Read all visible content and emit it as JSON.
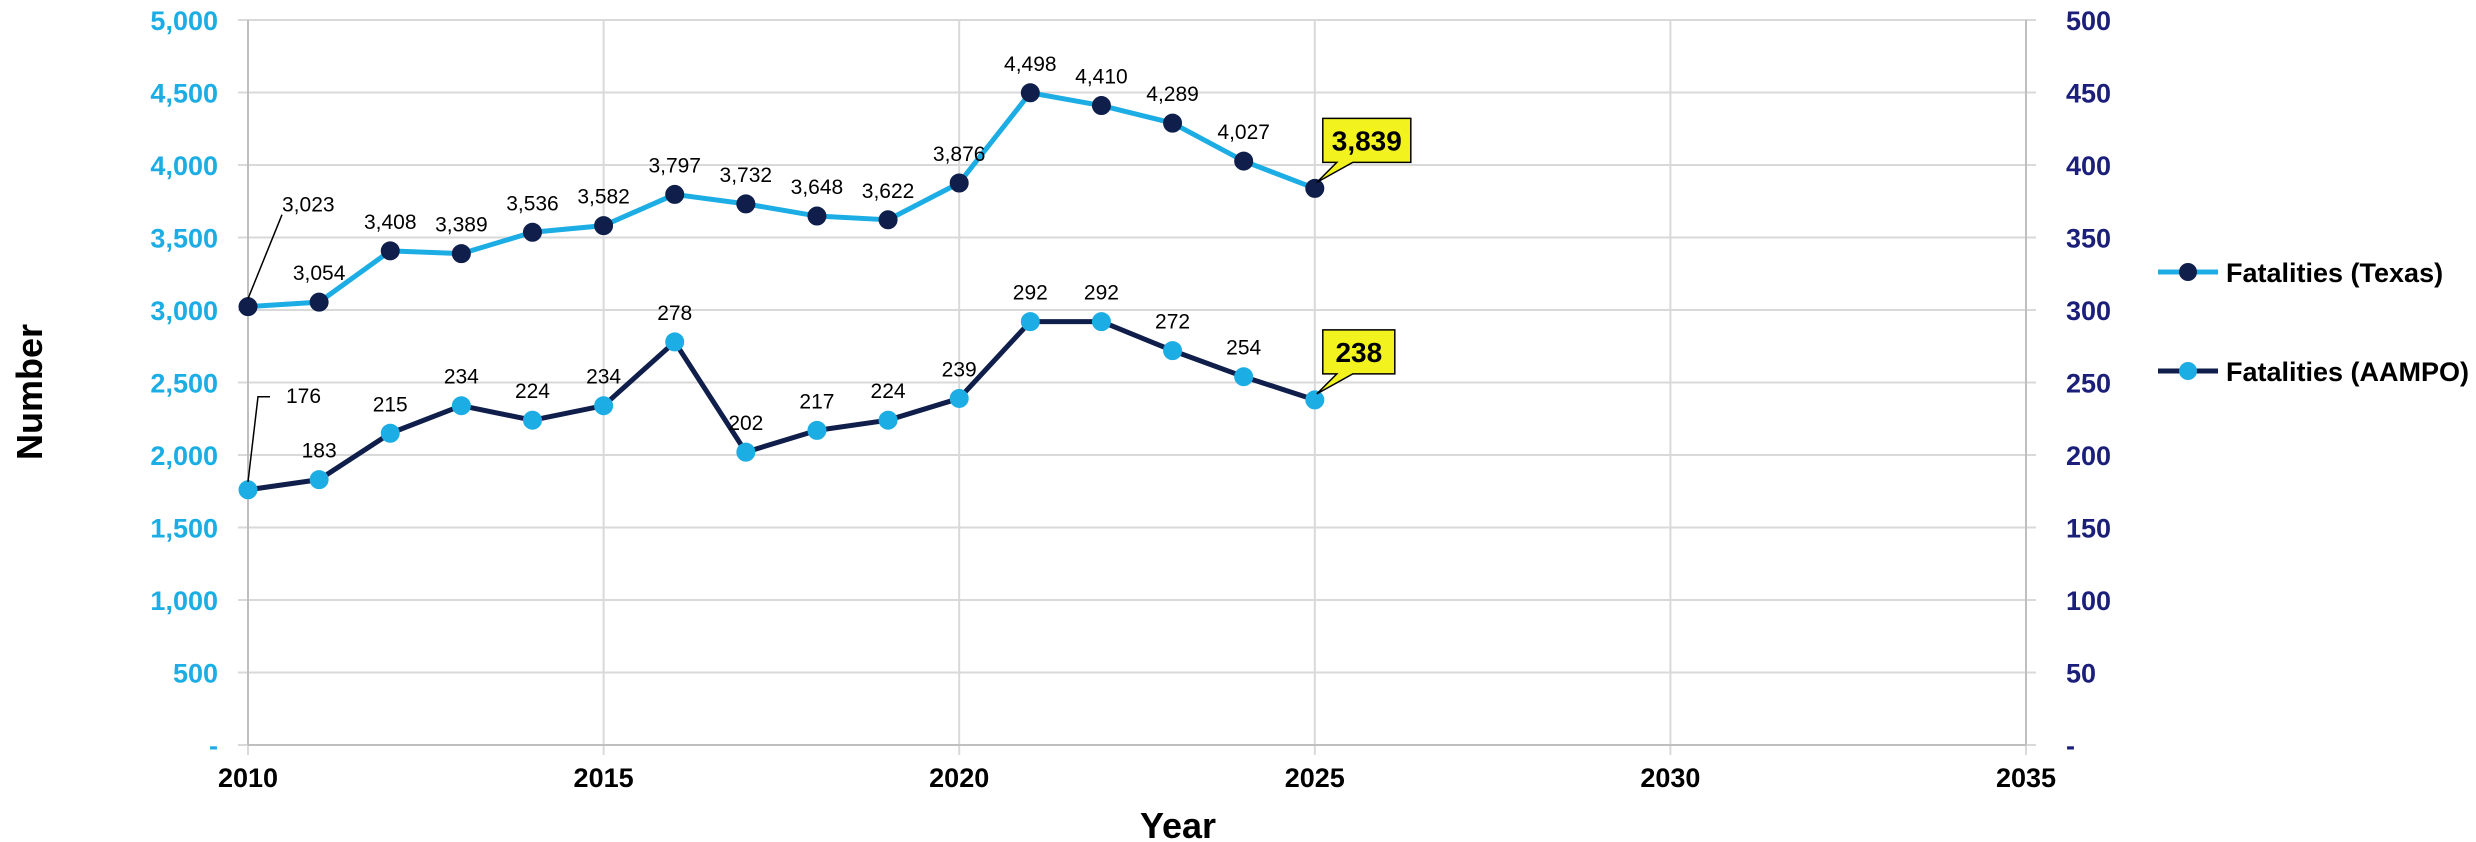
{
  "chart_data": {
    "type": "line",
    "xlabel": "Year",
    "ylabel": "Number",
    "xlim": [
      2010,
      2035
    ],
    "x_ticks": [
      "2010",
      "2015",
      "2020",
      "2025",
      "2030",
      "2035"
    ],
    "ylim_left": [
      0,
      5000
    ],
    "y_ticks_left": [
      "-",
      "500",
      "1,000",
      "1,500",
      "2,000",
      "2,500",
      "3,000",
      "3,500",
      "4,000",
      "4,500",
      "5,000"
    ],
    "ylim_right": [
      0,
      500
    ],
    "y_ticks_right": [
      "-",
      "50",
      "100",
      "150",
      "200",
      "250",
      "300",
      "350",
      "400",
      "450",
      "500"
    ],
    "grid": true,
    "legend_position": "right",
    "series": [
      {
        "name": "Fatalities (Texas)",
        "axis": "left",
        "line_color": "#1CADE4",
        "marker_color": "#0F1E4A",
        "x": [
          2010,
          2011,
          2012,
          2013,
          2014,
          2015,
          2016,
          2017,
          2018,
          2019,
          2020,
          2021,
          2022,
          2023,
          2024,
          2025
        ],
        "values": [
          3023,
          3054,
          3408,
          3389,
          3536,
          3582,
          3797,
          3732,
          3648,
          3622,
          3876,
          4498,
          4410,
          4289,
          4027,
          3839
        ],
        "labels": [
          "3,023",
          "3,054",
          "3,408",
          "3,389",
          "3,536",
          "3,582",
          "3,797",
          "3,732",
          "3,648",
          "3,622",
          "3,876",
          "4,498",
          "4,410",
          "4,289",
          "4,027",
          "3,839"
        ]
      },
      {
        "name": "Fatalities (AAMPO)",
        "axis": "right",
        "line_color": "#0F1E4A",
        "marker_color": "#1CADE4",
        "x": [
          2010,
          2011,
          2012,
          2013,
          2014,
          2015,
          2016,
          2017,
          2018,
          2019,
          2020,
          2021,
          2022,
          2023,
          2024,
          2025
        ],
        "values": [
          176,
          183,
          215,
          234,
          224,
          234,
          278,
          202,
          217,
          224,
          239,
          292,
          292,
          272,
          254,
          238
        ],
        "labels": [
          "176",
          "183",
          "215",
          "234",
          "224",
          "234",
          "278",
          "202",
          "217",
          "224",
          "239",
          "292",
          "292",
          "272",
          "254",
          "238"
        ]
      }
    ],
    "callouts": [
      {
        "series": 0,
        "label": "3,839",
        "color": "#F2F21E"
      },
      {
        "series": 1,
        "label": "238",
        "color": "#F2F21E"
      }
    ],
    "colors": {
      "left_axis": "#1CADE4",
      "right_axis": "#1B1F7A",
      "grid": "#D9D9D9"
    }
  }
}
